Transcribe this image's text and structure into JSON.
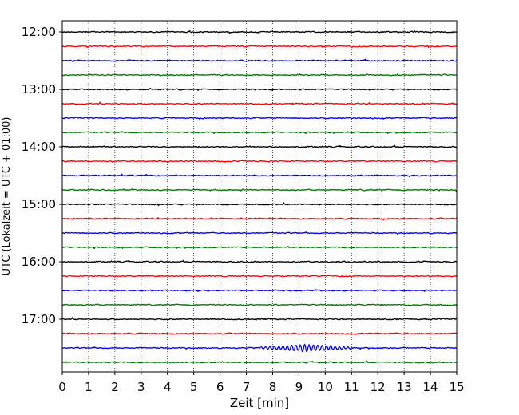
{
  "chart_data": {
    "type": "line",
    "title": "",
    "xlabel": "Zeit  [min]",
    "ylabel": "UTC (Lokalzeit = UTC + 01:00)",
    "xlim": [
      0,
      15
    ],
    "x_ticks": [
      0,
      1,
      2,
      3,
      4,
      5,
      6,
      7,
      8,
      9,
      10,
      11,
      12,
      13,
      14,
      15
    ],
    "y_tick_labels": [
      "12:00",
      "13:00",
      "14:00",
      "15:00",
      "16:00",
      "17:00"
    ],
    "rows_per_hour": 4,
    "row_minutes": 15,
    "rows": [
      {
        "start": "12:00",
        "color": "#000000"
      },
      {
        "start": "12:15",
        "color": "#ff0000"
      },
      {
        "start": "12:30",
        "color": "#0000ff"
      },
      {
        "start": "12:45",
        "color": "#007700"
      },
      {
        "start": "13:00",
        "color": "#000000"
      },
      {
        "start": "13:15",
        "color": "#ff0000"
      },
      {
        "start": "13:30",
        "color": "#0000ff"
      },
      {
        "start": "13:45",
        "color": "#007700"
      },
      {
        "start": "14:00",
        "color": "#000000"
      },
      {
        "start": "14:15",
        "color": "#ff0000"
      },
      {
        "start": "14:30",
        "color": "#0000ff"
      },
      {
        "start": "14:45",
        "color": "#007700"
      },
      {
        "start": "15:00",
        "color": "#000000"
      },
      {
        "start": "15:15",
        "color": "#ff0000"
      },
      {
        "start": "15:30",
        "color": "#0000ff"
      },
      {
        "start": "15:45",
        "color": "#007700"
      },
      {
        "start": "16:00",
        "color": "#000000"
      },
      {
        "start": "16:15",
        "color": "#ff0000"
      },
      {
        "start": "16:30",
        "color": "#0000ff"
      },
      {
        "start": "16:45",
        "color": "#007700"
      },
      {
        "start": "17:00",
        "color": "#000000"
      },
      {
        "start": "17:15",
        "color": "#ff0000"
      },
      {
        "start": "17:30",
        "color": "#0000ff",
        "event": {
          "from_min": 7.5,
          "to_min": 11.0,
          "peak_min": 9.3
        }
      },
      {
        "start": "17:45",
        "color": "#007700"
      }
    ],
    "grid": {
      "vertical": true,
      "style": "dotted"
    },
    "legend": "none"
  }
}
